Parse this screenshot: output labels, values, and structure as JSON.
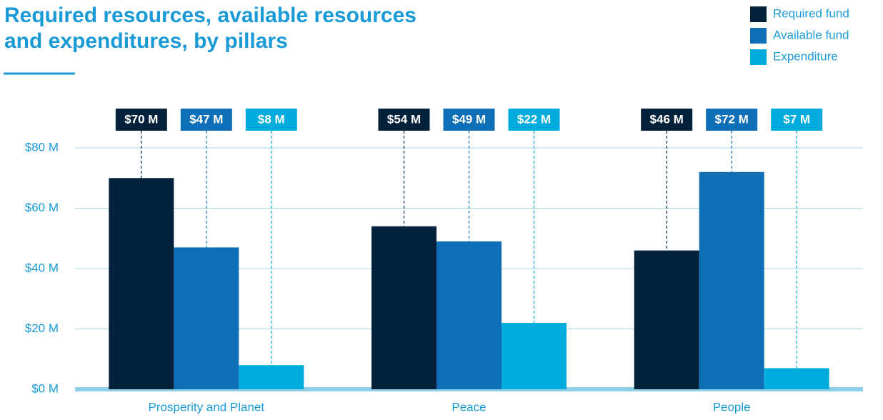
{
  "chart_data": {
    "type": "bar",
    "title": "Required resources, available resources and expenditures, by pillars",
    "categories": [
      "Prosperity and Planet",
      "Peace",
      "People"
    ],
    "series": [
      {
        "name": "Required fund",
        "color": "#03213a",
        "values": [
          70,
          54,
          46
        ],
        "value_labels": [
          "$70 M",
          "$54 M",
          "$46 M"
        ]
      },
      {
        "name": "Available fund",
        "color": "#0f6fb6",
        "values": [
          47,
          49,
          72
        ],
        "value_labels": [
          "$47 M",
          "$49 M",
          "$72 M"
        ]
      },
      {
        "name": "Expenditure",
        "color": "#00acdc",
        "values": [
          8,
          22,
          7
        ],
        "value_labels": [
          "$8 M",
          "$22 M",
          "$7 M"
        ]
      }
    ],
    "ylim": [
      0,
      80
    ],
    "yticks": [
      {
        "value": 0,
        "label": "$0 M"
      },
      {
        "value": 20,
        "label": "$20 M"
      },
      {
        "value": 40,
        "label": "$40 M"
      },
      {
        "value": 60,
        "label": "$60 M"
      },
      {
        "value": 80,
        "label": "$80 M"
      }
    ],
    "grid": true,
    "legend": "top-right"
  }
}
